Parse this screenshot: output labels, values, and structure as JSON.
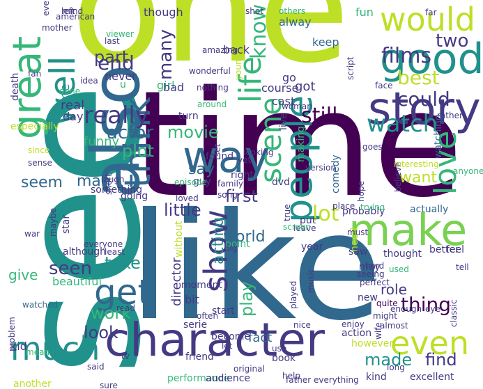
{
  "palette": {
    "background": "#ffffff",
    "yellow_green": "#bddf26",
    "green": "#7ad151",
    "teal_green": "#35b779",
    "teal": "#21918c",
    "blue": "#31688e",
    "indigo": "#443a83",
    "dark_purple": "#440154"
  },
  "words": [
    {
      "t": "one",
      "c": "yellow_green"
    },
    {
      "t": "time",
      "c": "dark_purple"
    },
    {
      "t": "like",
      "c": "blue"
    },
    {
      "t": "see",
      "c": "teal"
    },
    {
      "t": "also",
      "c": "blue"
    },
    {
      "t": "character",
      "c": "indigo"
    },
    {
      "t": "story",
      "c": "indigo"
    },
    {
      "t": "make",
      "c": "green"
    },
    {
      "t": "good",
      "c": "teal"
    },
    {
      "t": "way",
      "c": "blue"
    },
    {
      "t": "great",
      "c": "teal_green"
    },
    {
      "t": "think",
      "c": "blue"
    },
    {
      "t": "people",
      "c": "teal"
    },
    {
      "t": "well",
      "c": "teal"
    },
    {
      "t": "get",
      "c": "blue"
    },
    {
      "t": "much",
      "c": "teal"
    },
    {
      "t": "would",
      "c": "yellow_green"
    },
    {
      "t": "life",
      "c": "teal_green"
    },
    {
      "t": "show",
      "c": "indigo"
    },
    {
      "t": "love",
      "c": "teal_green"
    },
    {
      "t": "scene",
      "c": "teal_green"
    },
    {
      "t": "even",
      "c": "yellow_green"
    },
    {
      "t": "watch",
      "c": "teal"
    },
    {
      "t": "really",
      "c": "indigo"
    },
    {
      "t": "films",
      "c": "indigo"
    },
    {
      "t": "best",
      "c": "yellow_green"
    },
    {
      "t": "could",
      "c": "indigo"
    },
    {
      "t": "still",
      "c": "dark_purple"
    },
    {
      "t": "know",
      "c": "teal_green"
    },
    {
      "t": "end",
      "c": "indigo"
    },
    {
      "t": "two",
      "c": "indigo"
    },
    {
      "t": "movie",
      "c": "teal_green"
    },
    {
      "t": "actor",
      "c": "blue"
    },
    {
      "t": "plot",
      "c": "teal_green"
    },
    {
      "t": "say",
      "c": "blue"
    },
    {
      "t": "first",
      "c": "indigo"
    },
    {
      "t": "little",
      "c": "indigo"
    },
    {
      "t": "lot",
      "c": "yellow_green"
    },
    {
      "t": "seem",
      "c": "blue"
    },
    {
      "t": "man",
      "c": "blue"
    },
    {
      "t": "want",
      "c": "yellow_green"
    },
    {
      "t": "seen",
      "c": "indigo"
    },
    {
      "t": "take",
      "c": "teal"
    },
    {
      "t": "made",
      "c": "teal"
    },
    {
      "t": "find",
      "c": "indigo"
    },
    {
      "t": "work",
      "c": "teal_green"
    },
    {
      "t": "look",
      "c": "indigo"
    },
    {
      "t": "play",
      "c": "teal_green"
    },
    {
      "t": "acting",
      "c": "teal"
    },
    {
      "t": "world",
      "c": "blue"
    },
    {
      "t": "role",
      "c": "indigo"
    },
    {
      "t": "thing",
      "c": "dark_purple"
    },
    {
      "t": "director",
      "c": "indigo"
    },
    {
      "t": "give",
      "c": "teal_green"
    },
    {
      "t": "many",
      "c": "indigo"
    },
    {
      "t": "part",
      "c": "indigo"
    },
    {
      "t": "fact",
      "c": "blue"
    },
    {
      "t": "come",
      "c": "teal"
    },
    {
      "t": "real",
      "c": "indigo"
    },
    {
      "t": "day",
      "c": "indigo"
    },
    {
      "t": "funny",
      "c": "teal_green"
    },
    {
      "t": "girl",
      "c": "teal_green"
    },
    {
      "t": "bad",
      "c": "indigo"
    },
    {
      "t": "never",
      "c": "indigo"
    },
    {
      "t": "u",
      "c": "teal_green"
    },
    {
      "t": "back",
      "c": "indigo"
    },
    {
      "t": "though",
      "c": "indigo"
    },
    {
      "t": "right",
      "c": "indigo"
    },
    {
      "t": "keep",
      "c": "blue"
    },
    {
      "t": "alway",
      "c": "blue"
    },
    {
      "t": "fun",
      "c": "teal_green"
    },
    {
      "t": "go",
      "c": "indigo"
    },
    {
      "t": "got",
      "c": "indigo"
    },
    {
      "t": "course",
      "c": "indigo"
    },
    {
      "t": "cast",
      "c": "indigo"
    },
    {
      "t": "turn",
      "c": "indigo"
    },
    {
      "t": "found",
      "c": "indigo"
    },
    {
      "t": "guy",
      "c": "indigo"
    },
    {
      "t": "dvd",
      "c": "indigo"
    },
    {
      "t": "live",
      "c": "indigo"
    },
    {
      "t": "making",
      "c": "teal_green"
    },
    {
      "t": "comedy",
      "c": "blue"
    },
    {
      "t": "watching",
      "c": "blue"
    },
    {
      "t": "probably",
      "c": "indigo"
    },
    {
      "t": "actually",
      "c": "blue"
    },
    {
      "t": "something",
      "c": "indigo"
    },
    {
      "t": "going",
      "c": "indigo"
    },
    {
      "t": "star",
      "c": "indigo"
    },
    {
      "t": "although",
      "c": "indigo"
    },
    {
      "t": "point",
      "c": "teal_green"
    },
    {
      "t": "saw",
      "c": "indigo"
    },
    {
      "t": "thought",
      "c": "indigo"
    },
    {
      "t": "better",
      "c": "indigo"
    },
    {
      "t": "feel",
      "c": "indigo"
    },
    {
      "t": "year",
      "c": "indigo"
    },
    {
      "t": "may",
      "c": "indigo"
    },
    {
      "t": "new",
      "c": "indigo"
    },
    {
      "t": "quite",
      "c": "dark_purple"
    },
    {
      "t": "music",
      "c": "indigo"
    },
    {
      "t": "played",
      "c": "indigo"
    },
    {
      "t": "beautiful",
      "c": "teal_green"
    },
    {
      "t": "without",
      "c": "yellow_green"
    },
    {
      "t": "moment",
      "c": "indigo"
    },
    {
      "t": "bit",
      "c": "indigo"
    },
    {
      "t": "start",
      "c": "indigo"
    },
    {
      "t": "serie",
      "c": "indigo"
    },
    {
      "t": "become",
      "c": "indigo"
    },
    {
      "t": "action",
      "c": "indigo"
    },
    {
      "t": "however",
      "c": "yellow_green"
    },
    {
      "t": "kid",
      "c": "indigo"
    },
    {
      "t": "another",
      "c": "yellow_green"
    },
    {
      "t": "performance",
      "c": "teal_green"
    },
    {
      "t": "audience",
      "c": "indigo"
    },
    {
      "t": "book",
      "c": "indigo"
    },
    {
      "t": "kind",
      "c": "indigo"
    },
    {
      "t": "excellent",
      "c": "indigo"
    },
    {
      "t": "friend",
      "c": "indigo"
    },
    {
      "t": "father",
      "c": "indigo"
    },
    {
      "t": "everything",
      "c": "indigo"
    },
    {
      "t": "watched",
      "c": "blue"
    },
    {
      "t": "help",
      "c": "indigo"
    },
    {
      "t": "original",
      "c": "indigo"
    },
    {
      "t": "long",
      "c": "indigo"
    },
    {
      "t": "wife",
      "c": "indigo"
    },
    {
      "t": "almost",
      "c": "indigo"
    },
    {
      "t": "enjoy",
      "c": "indigo"
    },
    {
      "t": "might",
      "c": "indigo"
    },
    {
      "t": "enough",
      "c": "indigo"
    },
    {
      "t": "eye",
      "c": "indigo"
    },
    {
      "t": "classic",
      "c": "indigo"
    },
    {
      "t": "tell",
      "c": "indigo"
    },
    {
      "t": "used",
      "c": "teal_green"
    },
    {
      "t": "seeing",
      "c": "indigo"
    },
    {
      "t": "perfect",
      "c": "indigo"
    },
    {
      "t": "hard",
      "c": "indigo"
    },
    {
      "t": "need",
      "c": "yellow_green"
    },
    {
      "t": "put",
      "c": "indigo"
    },
    {
      "t": "leave",
      "c": "indigo"
    },
    {
      "t": "screen",
      "c": "teal_green"
    },
    {
      "t": "must",
      "c": "indigo"
    },
    {
      "t": "trying",
      "c": "teal_green"
    },
    {
      "t": "believe",
      "c": "indigo"
    },
    {
      "t": "anyone",
      "c": "teal_green"
    },
    {
      "t": "interesting",
      "c": "yellow_green"
    },
    {
      "t": "hope",
      "c": "indigo"
    },
    {
      "t": "true",
      "c": "indigo"
    },
    {
      "t": "song",
      "c": "indigo"
    },
    {
      "t": "family",
      "c": "indigo"
    },
    {
      "t": "episode",
      "c": "teal_green"
    },
    {
      "t": "short",
      "c": "indigo"
    },
    {
      "t": "laugh",
      "c": "indigo"
    },
    {
      "t": "sense",
      "c": "indigo"
    },
    {
      "t": "since",
      "c": "yellow_green"
    },
    {
      "t": "especially",
      "c": "yellow_green"
    },
    {
      "t": "death",
      "c": "indigo"
    },
    {
      "t": "done",
      "c": "teal_green"
    },
    {
      "t": "fan",
      "c": "indigo"
    },
    {
      "t": "idea",
      "c": "indigo"
    },
    {
      "t": "viewer",
      "c": "teal_green"
    },
    {
      "t": "last",
      "c": "indigo"
    },
    {
      "t": "mother",
      "c": "indigo"
    },
    {
      "t": "ever",
      "c": "indigo"
    },
    {
      "t": "mind",
      "c": "indigo"
    },
    {
      "t": "american",
      "c": "indigo"
    },
    {
      "t": "left",
      "c": "indigo"
    },
    {
      "t": "shot",
      "c": "indigo"
    },
    {
      "t": "others",
      "c": "teal_green"
    },
    {
      "t": "far",
      "c": "indigo"
    },
    {
      "t": "place",
      "c": "indigo"
    },
    {
      "t": "looking",
      "c": "indigo"
    },
    {
      "t": "wonderful",
      "c": "indigo"
    },
    {
      "t": "amazing",
      "c": "indigo"
    },
    {
      "t": "nothing",
      "c": "indigo"
    },
    {
      "t": "around",
      "c": "teal_green"
    },
    {
      "t": "set",
      "c": "indigo"
    },
    {
      "t": "young",
      "c": "yellow_green"
    },
    {
      "t": "woman",
      "c": "indigo"
    },
    {
      "t": "version",
      "c": "indigo"
    },
    {
      "t": "goes",
      "c": "indigo"
    },
    {
      "t": "yet",
      "c": "indigo"
    },
    {
      "t": "rather",
      "c": "indigo"
    },
    {
      "t": "script",
      "c": "indigo"
    },
    {
      "t": "face",
      "c": "indigo"
    },
    {
      "t": "loved",
      "c": "indigo"
    },
    {
      "t": "big",
      "c": "indigo"
    },
    {
      "t": "war",
      "c": "indigo"
    },
    {
      "t": "maybe",
      "c": "indigo"
    },
    {
      "t": "everyone",
      "c": "indigo"
    },
    {
      "t": "least",
      "c": "indigo"
    },
    {
      "t": "read",
      "c": "indigo"
    },
    {
      "t": "often",
      "c": "indigo"
    },
    {
      "t": "let",
      "c": "indigo"
    },
    {
      "t": "use",
      "c": "indigo"
    },
    {
      "t": "nice",
      "c": "indigo"
    },
    {
      "t": "mean",
      "c": "teal_green"
    },
    {
      "t": "problem",
      "c": "indigo"
    },
    {
      "t": "said",
      "c": "indigo"
    },
    {
      "t": "sure",
      "c": "indigo"
    },
    {
      "t": "tv",
      "c": "indigo"
    }
  ]
}
